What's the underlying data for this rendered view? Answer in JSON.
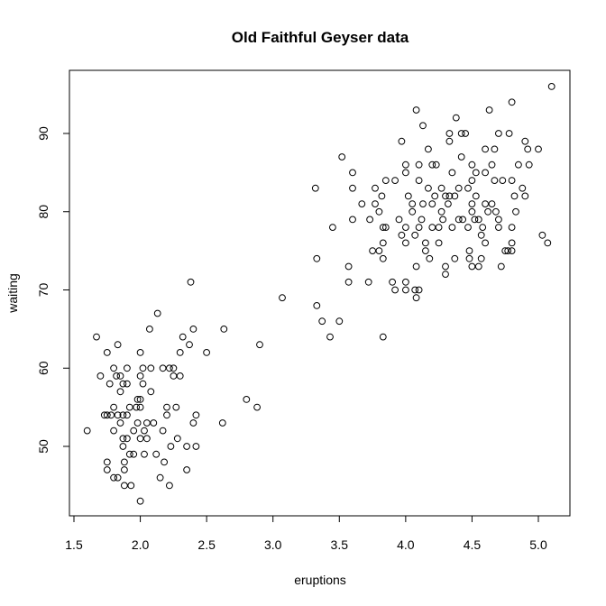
{
  "chart_data": {
    "type": "scatter",
    "title": "Old Faithful Geyser data",
    "xlabel": "eruptions",
    "ylabel": "waiting",
    "xlim": [
      1.6,
      5.1
    ],
    "ylim": [
      43,
      96
    ],
    "xticks": [
      "1.5",
      "2.0",
      "2.5",
      "3.0",
      "3.5",
      "4.0",
      "4.5",
      "5.0"
    ],
    "yticks": [
      "50",
      "60",
      "70",
      "80",
      "90"
    ],
    "grid": false,
    "legend": "none",
    "marker": "open-circle",
    "color": "#000000",
    "points": [
      [
        1.6,
        52
      ],
      [
        1.67,
        64
      ],
      [
        1.7,
        59
      ],
      [
        1.73,
        54
      ],
      [
        1.75,
        62
      ],
      [
        1.75,
        54
      ],
      [
        1.75,
        48
      ],
      [
        1.75,
        47
      ],
      [
        1.77,
        58
      ],
      [
        1.78,
        54
      ],
      [
        1.8,
        60
      ],
      [
        1.8,
        55
      ],
      [
        1.8,
        46
      ],
      [
        1.8,
        52
      ],
      [
        1.82,
        59
      ],
      [
        1.83,
        54
      ],
      [
        1.83,
        46
      ],
      [
        1.83,
        63
      ],
      [
        1.85,
        59
      ],
      [
        1.85,
        57
      ],
      [
        1.85,
        53
      ],
      [
        1.87,
        58
      ],
      [
        1.87,
        54
      ],
      [
        1.87,
        51
      ],
      [
        1.87,
        50
      ],
      [
        1.88,
        48
      ],
      [
        1.88,
        47
      ],
      [
        1.88,
        45
      ],
      [
        1.9,
        60
      ],
      [
        1.9,
        58
      ],
      [
        1.9,
        54
      ],
      [
        1.9,
        51
      ],
      [
        1.92,
        55
      ],
      [
        1.92,
        49
      ],
      [
        1.93,
        45
      ],
      [
        1.95,
        52
      ],
      [
        1.95,
        49
      ],
      [
        1.97,
        55
      ],
      [
        1.98,
        56
      ],
      [
        1.98,
        53
      ],
      [
        2.0,
        62
      ],
      [
        2.0,
        59
      ],
      [
        2.0,
        56
      ],
      [
        2.0,
        55
      ],
      [
        2.0,
        51
      ],
      [
        2.0,
        43
      ],
      [
        2.02,
        58
      ],
      [
        2.02,
        60
      ],
      [
        2.03,
        52
      ],
      [
        2.03,
        49
      ],
      [
        2.05,
        53
      ],
      [
        2.05,
        51
      ],
      [
        2.07,
        65
      ],
      [
        2.08,
        60
      ],
      [
        2.08,
        57
      ],
      [
        2.1,
        53
      ],
      [
        2.12,
        49
      ],
      [
        2.13,
        67
      ],
      [
        2.15,
        46
      ],
      [
        2.17,
        60
      ],
      [
        2.17,
        52
      ],
      [
        2.18,
        48
      ],
      [
        2.2,
        55
      ],
      [
        2.2,
        54
      ],
      [
        2.22,
        60
      ],
      [
        2.22,
        45
      ],
      [
        2.23,
        50
      ],
      [
        2.25,
        60
      ],
      [
        2.25,
        59
      ],
      [
        2.27,
        55
      ],
      [
        2.28,
        51
      ],
      [
        2.3,
        62
      ],
      [
        2.3,
        59
      ],
      [
        2.32,
        64
      ],
      [
        2.35,
        50
      ],
      [
        2.35,
        47
      ],
      [
        2.37,
        63
      ],
      [
        2.38,
        71
      ],
      [
        2.4,
        65
      ],
      [
        2.4,
        53
      ],
      [
        2.42,
        54
      ],
      [
        2.42,
        50
      ],
      [
        2.5,
        62
      ],
      [
        2.62,
        53
      ],
      [
        2.63,
        65
      ],
      [
        2.8,
        56
      ],
      [
        2.88,
        55
      ],
      [
        2.9,
        63
      ],
      [
        3.07,
        69
      ],
      [
        3.32,
        83
      ],
      [
        3.33,
        74
      ],
      [
        3.33,
        68
      ],
      [
        3.37,
        66
      ],
      [
        3.43,
        64
      ],
      [
        3.45,
        78
      ],
      [
        3.5,
        66
      ],
      [
        3.52,
        87
      ],
      [
        3.57,
        73
      ],
      [
        3.57,
        71
      ],
      [
        3.6,
        85
      ],
      [
        3.6,
        83
      ],
      [
        3.6,
        79
      ],
      [
        3.67,
        81
      ],
      [
        3.72,
        71
      ],
      [
        3.73,
        79
      ],
      [
        3.75,
        75
      ],
      [
        3.77,
        83
      ],
      [
        3.77,
        81
      ],
      [
        3.8,
        75
      ],
      [
        3.8,
        80
      ],
      [
        3.82,
        82
      ],
      [
        3.83,
        78
      ],
      [
        3.83,
        76
      ],
      [
        3.83,
        74
      ],
      [
        3.83,
        64
      ],
      [
        3.85,
        84
      ],
      [
        3.85,
        78
      ],
      [
        3.9,
        71
      ],
      [
        3.92,
        70
      ],
      [
        3.92,
        84
      ],
      [
        3.95,
        79
      ],
      [
        3.97,
        89
      ],
      [
        3.97,
        77
      ],
      [
        4.0,
        86
      ],
      [
        4.0,
        85
      ],
      [
        4.0,
        78
      ],
      [
        4.0,
        76
      ],
      [
        4.0,
        71
      ],
      [
        4.0,
        70
      ],
      [
        4.02,
        82
      ],
      [
        4.05,
        81
      ],
      [
        4.05,
        80
      ],
      [
        4.07,
        77
      ],
      [
        4.07,
        70
      ],
      [
        4.08,
        69
      ],
      [
        4.08,
        73
      ],
      [
        4.08,
        93
      ],
      [
        4.1,
        84
      ],
      [
        4.1,
        78
      ],
      [
        4.1,
        70
      ],
      [
        4.1,
        86
      ],
      [
        4.12,
        79
      ],
      [
        4.13,
        91
      ],
      [
        4.13,
        81
      ],
      [
        4.15,
        76
      ],
      [
        4.15,
        75
      ],
      [
        4.17,
        88
      ],
      [
        4.17,
        83
      ],
      [
        4.18,
        74
      ],
      [
        4.2,
        86
      ],
      [
        4.2,
        78
      ],
      [
        4.2,
        81
      ],
      [
        4.22,
        82
      ],
      [
        4.23,
        86
      ],
      [
        4.25,
        78
      ],
      [
        4.25,
        76
      ],
      [
        4.27,
        80
      ],
      [
        4.27,
        83
      ],
      [
        4.28,
        79
      ],
      [
        4.3,
        82
      ],
      [
        4.3,
        73
      ],
      [
        4.3,
        72
      ],
      [
        4.32,
        81
      ],
      [
        4.33,
        89
      ],
      [
        4.33,
        82
      ],
      [
        4.33,
        90
      ],
      [
        4.35,
        78
      ],
      [
        4.35,
        85
      ],
      [
        4.37,
        82
      ],
      [
        4.37,
        74
      ],
      [
        4.38,
        92
      ],
      [
        4.4,
        83
      ],
      [
        4.4,
        79
      ],
      [
        4.42,
        87
      ],
      [
        4.42,
        90
      ],
      [
        4.43,
        79
      ],
      [
        4.45,
        90
      ],
      [
        4.47,
        78
      ],
      [
        4.47,
        83
      ],
      [
        4.48,
        74
      ],
      [
        4.48,
        75
      ],
      [
        4.5,
        73
      ],
      [
        4.5,
        81
      ],
      [
        4.5,
        80
      ],
      [
        4.5,
        84
      ],
      [
        4.5,
        86
      ],
      [
        4.52,
        79
      ],
      [
        4.53,
        85
      ],
      [
        4.53,
        82
      ],
      [
        4.55,
        73
      ],
      [
        4.55,
        79
      ],
      [
        4.57,
        74
      ],
      [
        4.57,
        77
      ],
      [
        4.58,
        78
      ],
      [
        4.6,
        85
      ],
      [
        4.6,
        88
      ],
      [
        4.6,
        81
      ],
      [
        4.6,
        76
      ],
      [
        4.62,
        80
      ],
      [
        4.63,
        93
      ],
      [
        4.65,
        86
      ],
      [
        4.65,
        81
      ],
      [
        4.67,
        84
      ],
      [
        4.67,
        88
      ],
      [
        4.68,
        80
      ],
      [
        4.7,
        78
      ],
      [
        4.7,
        79
      ],
      [
        4.7,
        90
      ],
      [
        4.72,
        73
      ],
      [
        4.73,
        84
      ],
      [
        4.75,
        75
      ],
      [
        4.77,
        75
      ],
      [
        4.78,
        90
      ],
      [
        4.8,
        94
      ],
      [
        4.8,
        84
      ],
      [
        4.8,
        78
      ],
      [
        4.8,
        76
      ],
      [
        4.8,
        75
      ],
      [
        4.82,
        82
      ],
      [
        4.83,
        80
      ],
      [
        4.85,
        86
      ],
      [
        4.88,
        83
      ],
      [
        4.9,
        89
      ],
      [
        4.9,
        82
      ],
      [
        4.92,
        88
      ],
      [
        4.93,
        86
      ],
      [
        5.0,
        88
      ],
      [
        5.03,
        77
      ],
      [
        5.07,
        76
      ],
      [
        5.1,
        96
      ]
    ]
  }
}
